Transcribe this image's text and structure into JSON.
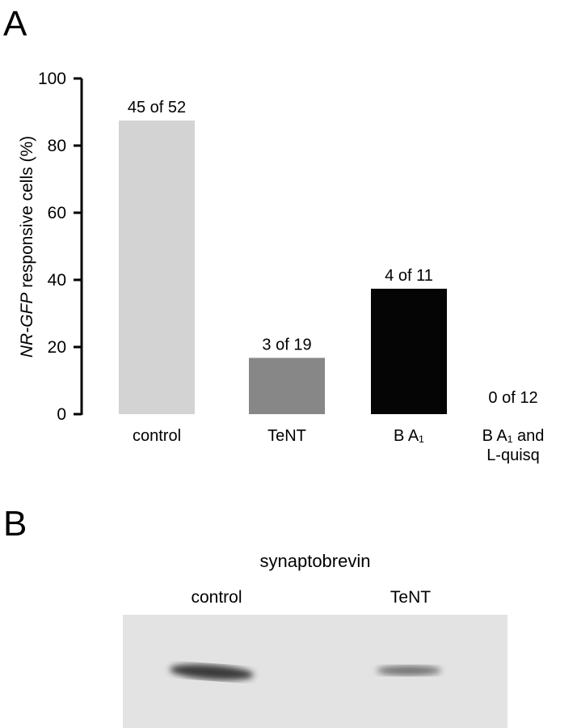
{
  "panel_a": {
    "letter": "A"
  },
  "chart_data": {
    "type": "bar",
    "y_label_prefix": "NR-GFP",
    "y_label": "responsive cells (%)",
    "categories": [
      "control",
      "TeNT",
      "B A₁",
      "B A₁ and L-quisq"
    ],
    "values": [
      86.5,
      15.8,
      36.4,
      0
    ],
    "value_labels": [
      "45 of 52",
      "3 of 19",
      "4 of 11",
      "0 of 12"
    ],
    "colors": [
      "#d3d3d3",
      "#878787",
      "#050505",
      "#050505"
    ],
    "ylim": [
      0,
      100
    ],
    "yticks": [
      0,
      20,
      40,
      60,
      80,
      100
    ],
    "grid": false
  },
  "panel_b": {
    "letter": "B",
    "title": "synaptobrevin",
    "lanes": [
      "control",
      "TeNT"
    ]
  }
}
